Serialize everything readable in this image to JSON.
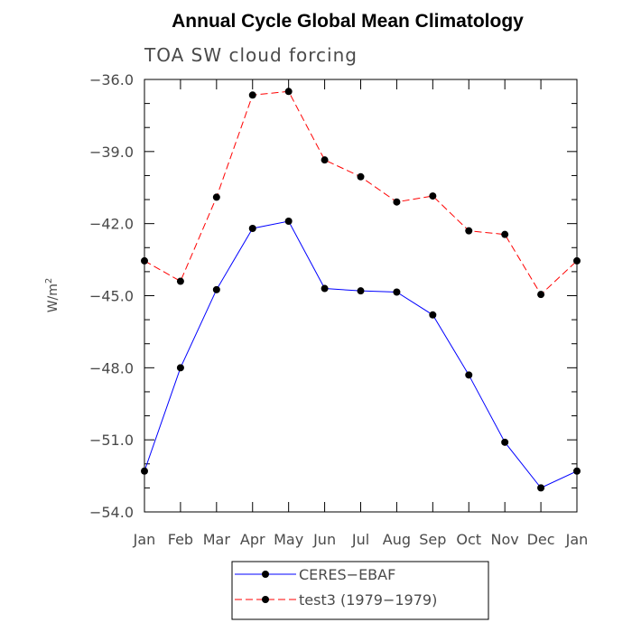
{
  "chart_data": {
    "type": "line",
    "title": "Annual Cycle Global Mean Climatology",
    "subtitle": "TOA SW cloud forcing",
    "ylabel": "W/m",
    "ylabel_sup": "2",
    "xlabel": "",
    "categories": [
      "Jan",
      "Feb",
      "Mar",
      "Apr",
      "May",
      "Jun",
      "Jul",
      "Aug",
      "Sep",
      "Oct",
      "Nov",
      "Dec",
      "Jan"
    ],
    "ylim": [
      -54.0,
      -36.0
    ],
    "yticks": [
      -36.0,
      -39.0,
      -42.0,
      -45.0,
      -48.0,
      -51.0,
      -54.0
    ],
    "ytick_labels": [
      "−36.0",
      "−39.0",
      "−42.0",
      "−45.0",
      "−48.0",
      "−51.0",
      "−54.0"
    ],
    "grid": false,
    "legend": "bottom",
    "series": [
      {
        "name": "CERES−EBAF",
        "color": "#0000ff",
        "dash": "solid",
        "values": [
          -52.3,
          -48.0,
          -44.75,
          -42.2,
          -41.9,
          -44.7,
          -44.8,
          -44.85,
          -45.8,
          -48.3,
          -51.1,
          -53.0,
          -52.3
        ]
      },
      {
        "name": "test3 (1979−1979)",
        "color": "#ff0000",
        "dash": "dashed",
        "values": [
          -43.55,
          -44.4,
          -40.9,
          -36.65,
          -36.5,
          -39.35,
          -40.05,
          -41.1,
          -40.85,
          -42.3,
          -42.45,
          -44.95,
          -43.55
        ]
      }
    ]
  }
}
